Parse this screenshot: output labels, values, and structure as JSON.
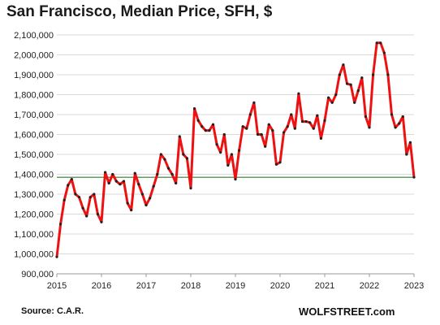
{
  "chart_data": {
    "type": "line",
    "title": "San Francisco, Median Price, SFH, $",
    "xlabel": "",
    "ylabel": "",
    "ylim": [
      900000,
      2100000
    ],
    "xlim": [
      2015,
      2023
    ],
    "y_ticks": [
      "900,000",
      "1,000,000",
      "1,100,000",
      "1,200,000",
      "1,300,000",
      "1,400,000",
      "1,500,000",
      "1,600,000",
      "1,700,000",
      "1,800,000",
      "1,900,000",
      "2,000,000",
      "2,100,000"
    ],
    "x_ticks": [
      "2015",
      "2016",
      "2017",
      "2018",
      "2019",
      "2020",
      "2021",
      "2022",
      "2023"
    ],
    "grid": "horizontal",
    "series": [
      {
        "color": "#ee1111",
        "marker_color": "#222222",
        "x": [
          2015.0,
          2015.0833,
          2015.1667,
          2015.25,
          2015.3333,
          2015.4167,
          2015.5,
          2015.5833,
          2015.6667,
          2015.75,
          2015.8333,
          2015.9167,
          2016.0,
          2016.0833,
          2016.1667,
          2016.25,
          2016.3333,
          2016.4167,
          2016.5,
          2016.5833,
          2016.6667,
          2016.75,
          2016.8333,
          2016.9167,
          2017.0,
          2017.0833,
          2017.1667,
          2017.25,
          2017.3333,
          2017.4167,
          2017.5,
          2017.5833,
          2017.6667,
          2017.75,
          2017.8333,
          2017.9167,
          2018.0,
          2018.0833,
          2018.1667,
          2018.25,
          2018.3333,
          2018.4167,
          2018.5,
          2018.5833,
          2018.6667,
          2018.75,
          2018.8333,
          2018.9167,
          2019.0,
          2019.0833,
          2019.1667,
          2019.25,
          2019.3333,
          2019.4167,
          2019.5,
          2019.5833,
          2019.6667,
          2019.75,
          2019.8333,
          2019.9167,
          2020.0,
          2020.0833,
          2020.1667,
          2020.25,
          2020.3333,
          2020.4167,
          2020.5,
          2020.5833,
          2020.6667,
          2020.75,
          2020.8333,
          2020.9167,
          2021.0,
          2021.0833,
          2021.1667,
          2021.25,
          2021.3333,
          2021.4167,
          2021.5,
          2021.5833,
          2021.6667,
          2021.75,
          2021.8333,
          2021.9167,
          2022.0,
          2022.0833,
          2022.1667,
          2022.25,
          2022.3333,
          2022.4167,
          2022.5,
          2022.5833,
          2022.6667,
          2022.75,
          2022.8333,
          2022.9167,
          2023.0
        ],
        "values": [
          985000,
          1150000,
          1270000,
          1345000,
          1375000,
          1300000,
          1285000,
          1230000,
          1190000,
          1285000,
          1300000,
          1200000,
          1160000,
          1410000,
          1355000,
          1400000,
          1365000,
          1350000,
          1365000,
          1255000,
          1220000,
          1405000,
          1350000,
          1300000,
          1245000,
          1280000,
          1340000,
          1400000,
          1500000,
          1475000,
          1430000,
          1400000,
          1355000,
          1590000,
          1500000,
          1480000,
          1330000,
          1730000,
          1670000,
          1640000,
          1620000,
          1620000,
          1650000,
          1550000,
          1510000,
          1600000,
          1445000,
          1500000,
          1375000,
          1520000,
          1640000,
          1630000,
          1700000,
          1760000,
          1600000,
          1600000,
          1540000,
          1650000,
          1620000,
          1450000,
          1460000,
          1610000,
          1640000,
          1700000,
          1630000,
          1805000,
          1665000,
          1665000,
          1660000,
          1630000,
          1695000,
          1580000,
          1670000,
          1785000,
          1760000,
          1800000,
          1900000,
          1950000,
          1855000,
          1850000,
          1760000,
          1820000,
          1885000,
          1690000,
          1635000,
          1900000,
          2060000,
          2060000,
          2010000,
          1900000,
          1700000,
          1635000,
          1655000,
          1690000,
          1500000,
          1560000,
          1385000
        ]
      }
    ],
    "reference_line": {
      "y": 1385000,
      "color": "#2e7d32"
    }
  },
  "source": "Source: C.A.R.",
  "brand": "WOLFSTREET.com"
}
